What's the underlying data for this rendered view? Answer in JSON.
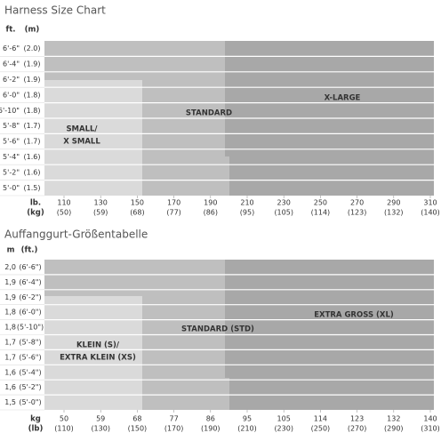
{
  "panels": [
    {
      "title": "Harness Size Chart",
      "header": [
        "ft.",
        "(m)"
      ],
      "rows": [
        [
          "6'-6\"",
          "(2.0)"
        ],
        [
          "6'-4\"",
          "(1.9)"
        ],
        [
          "6'-2\"",
          "(1.9)"
        ],
        [
          "6'-0\"",
          "(1.8)"
        ],
        [
          "5'-10\"",
          "(1.8)"
        ],
        [
          "5'-8\"",
          "(1.7)"
        ],
        [
          "5'-6\"",
          "(1.7)"
        ],
        [
          "5'-4\"",
          "(1.6)"
        ],
        [
          "5'-2\"",
          "(1.6)"
        ],
        [
          "5'-0\"",
          "(1.5)"
        ]
      ],
      "axis_labels": [
        "lb.",
        "(kg)"
      ],
      "columns": [
        [
          "110",
          "(50)"
        ],
        [
          "130",
          "(59)"
        ],
        [
          "150",
          "(68)"
        ],
        [
          "170",
          "(77)"
        ],
        [
          "190",
          "(86)"
        ],
        [
          "210",
          "(95)"
        ],
        [
          "230",
          "(105)"
        ],
        [
          "250",
          "(114)"
        ],
        [
          "270",
          "(123)"
        ],
        [
          "290",
          "(132)"
        ],
        [
          "310",
          "(140)"
        ]
      ],
      "regions": {
        "small": [
          "SMALL/",
          "X SMALL"
        ],
        "standard": [
          "STANDARD"
        ],
        "large": [
          "X-LARGE"
        ]
      }
    },
    {
      "title": "Auffanggurt-Größentabelle",
      "header": [
        "m",
        "(ft.)"
      ],
      "rows": [
        [
          "2,0",
          "(6'-6\")"
        ],
        [
          "1,9",
          "(6'-4\")"
        ],
        [
          "1,9",
          "(6'-2\")"
        ],
        [
          "1,8",
          "(6'-0\")"
        ],
        [
          "1,8",
          "(5'-10\")"
        ],
        [
          "1,7",
          "(5'-8\")"
        ],
        [
          "1,7",
          "(5'-6\")"
        ],
        [
          "1,6",
          "(5'-4\")"
        ],
        [
          "1,6",
          "(5'-2\")"
        ],
        [
          "1,5",
          "(5'-0\")"
        ]
      ],
      "axis_labels": [
        "kg",
        "(lb)"
      ],
      "columns": [
        [
          "50",
          "(110)"
        ],
        [
          "59",
          "(130)"
        ],
        [
          "68",
          "(150)"
        ],
        [
          "77",
          "(170)"
        ],
        [
          "86",
          "(190)"
        ],
        [
          "95",
          "(210)"
        ],
        [
          "105",
          "(230)"
        ],
        [
          "114",
          "(250)"
        ],
        [
          "123",
          "(270)"
        ],
        [
          "132",
          "(290)"
        ],
        [
          "140",
          "(310)"
        ]
      ],
      "regions": {
        "small": [
          "KLEIN (S)/",
          "EXTRA KLEIN (XS)"
        ],
        "standard": [
          "STANDARD (STD)"
        ],
        "large": [
          "EXTRA GROSS (XL)"
        ]
      }
    }
  ]
}
